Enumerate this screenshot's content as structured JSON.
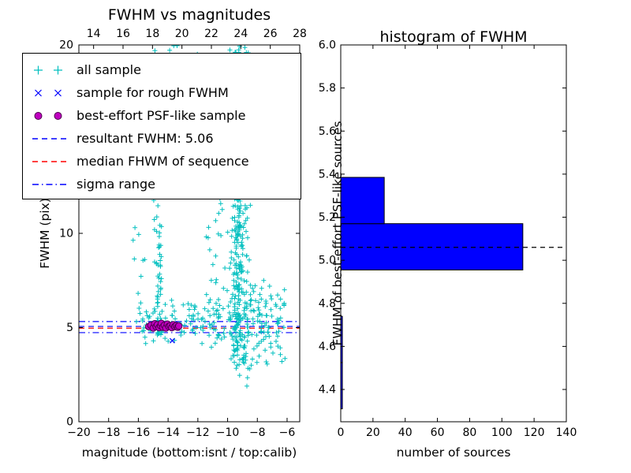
{
  "figure": {
    "background": "#ffffff"
  },
  "chart_data": [
    {
      "type": "scatter",
      "title": "FWHM vs magnitudes",
      "xlabel": "magnitude (bottom:isnt / top:calib)",
      "ylabel": "FWHM (pix)",
      "xlim": [
        -20,
        -5.15
      ],
      "top_xlim": [
        13.0,
        28.0
      ],
      "ylim": [
        0,
        20
      ],
      "xticks": [
        -20,
        -18,
        -16,
        -14,
        -12,
        -10,
        -8,
        -6
      ],
      "xtick_labels": [
        "−20",
        "−18",
        "−16",
        "−14",
        "−12",
        "−10",
        "−8",
        "−6"
      ],
      "top_xticks": [
        14,
        16,
        18,
        20,
        22,
        24,
        26,
        28
      ],
      "top_xtick_labels": [
        "14",
        "16",
        "18",
        "20",
        "22",
        "24",
        "26",
        "28"
      ],
      "yticks": [
        0,
        5,
        10,
        15,
        20
      ],
      "ytick_labels": [
        "0",
        "5",
        "10",
        "15",
        "20"
      ],
      "legend": [
        {
          "label": "all sample",
          "marker": "plus",
          "color": "#00bfbf"
        },
        {
          "label": "sample for rough FWHM",
          "marker": "x",
          "color": "#0000ff"
        },
        {
          "label": "best-effort PSF-like sample",
          "marker": "circle",
          "color": "#bf00bf"
        },
        {
          "label": "resultant FWHM: 5.06",
          "marker": "dashed",
          "color": "#0000ff"
        },
        {
          "label": "median FHWM of sequence",
          "marker": "dashed",
          "color": "#ff0000"
        },
        {
          "label": "sigma range",
          "marker": "dashdot",
          "color": "#0000ff"
        }
      ],
      "lines": [
        {
          "name": "resultant FWHM",
          "y": 5.06,
          "style": "dashed",
          "color": "#0000ff"
        },
        {
          "name": "median FWHM of sequence",
          "y": 4.97,
          "style": "dashed",
          "color": "#ff0000"
        },
        {
          "name": "sigma range low",
          "y": 4.73,
          "style": "dashdot",
          "color": "#0000ff"
        },
        {
          "name": "sigma range high",
          "y": 5.32,
          "style": "dashdot",
          "color": "#0000ff"
        }
      ],
      "series": {
        "all_sample": {
          "marker": "plus",
          "color": "#00bfbf",
          "seed": 20240601,
          "clusters": [
            {
              "n": 240,
              "x": [
                -10.05,
                -8.35
              ],
              "y": [
                3.0,
                13.5
              ],
              "xgauss": true,
              "ypow": 1.15
            },
            {
              "n": 120,
              "x": [
                -9.95,
                -8.55
              ],
              "y": [
                13.5,
                20.0
              ],
              "xgauss": true
            },
            {
              "n": 55,
              "x": [
                -14.78,
                -14.42
              ],
              "y": [
                4.6,
                13.0
              ],
              "ypow": 1.7
            },
            {
              "n": 170,
              "x": [
                -16.2,
                -6.3
              ],
              "y": [
                3.9,
                6.6
              ],
              "ygauss": true
            },
            {
              "n": 40,
              "x": [
                -16.0,
                -10.8
              ],
              "y": [
                12.5,
                20.0
              ]
            },
            {
              "n": 30,
              "x": [
                -11.6,
                -10.0
              ],
              "y": [
                5.5,
                13.0
              ]
            },
            {
              "n": 55,
              "x": [
                -8.4,
                -6.0
              ],
              "y": [
                3.0,
                7.5
              ]
            },
            {
              "n": 12,
              "x": [
                -16.4,
                -14.9
              ],
              "y": [
                6.5,
                12.0
              ]
            },
            {
              "n": 6,
              "x": [
                -10.0,
                -8.3
              ],
              "y": [
                1.8,
                3.0
              ]
            }
          ]
        },
        "rough_fwhm": {
          "marker": "x",
          "color": "#0000ff",
          "points": [
            [
              -15.05,
              5.0
            ],
            [
              -14.75,
              5.08
            ],
            [
              -14.5,
              4.95
            ],
            [
              -14.3,
              5.05
            ],
            [
              -14.0,
              5.0
            ],
            [
              -13.75,
              5.1
            ],
            [
              -13.5,
              5.0
            ],
            [
              -13.72,
              4.3
            ]
          ]
        },
        "psf_like": {
          "marker": "circle",
          "color": "#bf00bf",
          "points": [
            [
              -15.3,
              5.05
            ],
            [
              -15.15,
              5.12
            ],
            [
              -15.0,
              4.98
            ],
            [
              -14.9,
              5.2
            ],
            [
              -14.8,
              5.05
            ],
            [
              -14.72,
              5.15
            ],
            [
              -14.6,
              5.0
            ],
            [
              -14.5,
              5.1
            ],
            [
              -14.45,
              5.22
            ],
            [
              -14.35,
              5.02
            ],
            [
              -14.25,
              5.12
            ],
            [
              -14.15,
              4.98
            ],
            [
              -14.05,
              5.18
            ],
            [
              -13.95,
              5.06
            ],
            [
              -13.85,
              5.1
            ],
            [
              -13.75,
              5.0
            ],
            [
              -13.65,
              5.15
            ],
            [
              -13.55,
              5.05
            ],
            [
              -13.45,
              5.1
            ],
            [
              -13.35,
              5.02
            ],
            [
              -13.28,
              5.08
            ]
          ]
        }
      }
    },
    {
      "type": "bar",
      "orientation": "horizontal",
      "title": "histogram of FWHM",
      "xlabel": "number of sources",
      "ylabel": "FWHM of best-effort PSF-like sources",
      "xlim": [
        0,
        140
      ],
      "ylim": [
        4.25,
        6.0
      ],
      "xticks": [
        0,
        20,
        40,
        60,
        80,
        100,
        120,
        140
      ],
      "xtick_labels": [
        "0",
        "20",
        "40",
        "60",
        "80",
        "100",
        "120",
        "140"
      ],
      "yticks": [
        4.4,
        4.6,
        4.8,
        5.0,
        5.2,
        5.4,
        5.6,
        5.8,
        6.0
      ],
      "ytick_labels": [
        "4.4",
        "4.6",
        "4.8",
        "5.0",
        "5.2",
        "5.4",
        "5.6",
        "5.8",
        "6.0"
      ],
      "bin_edges": [
        4.31,
        4.525,
        4.74,
        4.955,
        5.17,
        5.385
      ],
      "counts": [
        1,
        1,
        0,
        113,
        27
      ],
      "bar_color": "#0000ff",
      "dashed_line": {
        "y": 5.06,
        "color": "#000000",
        "style": "dashed"
      }
    }
  ]
}
